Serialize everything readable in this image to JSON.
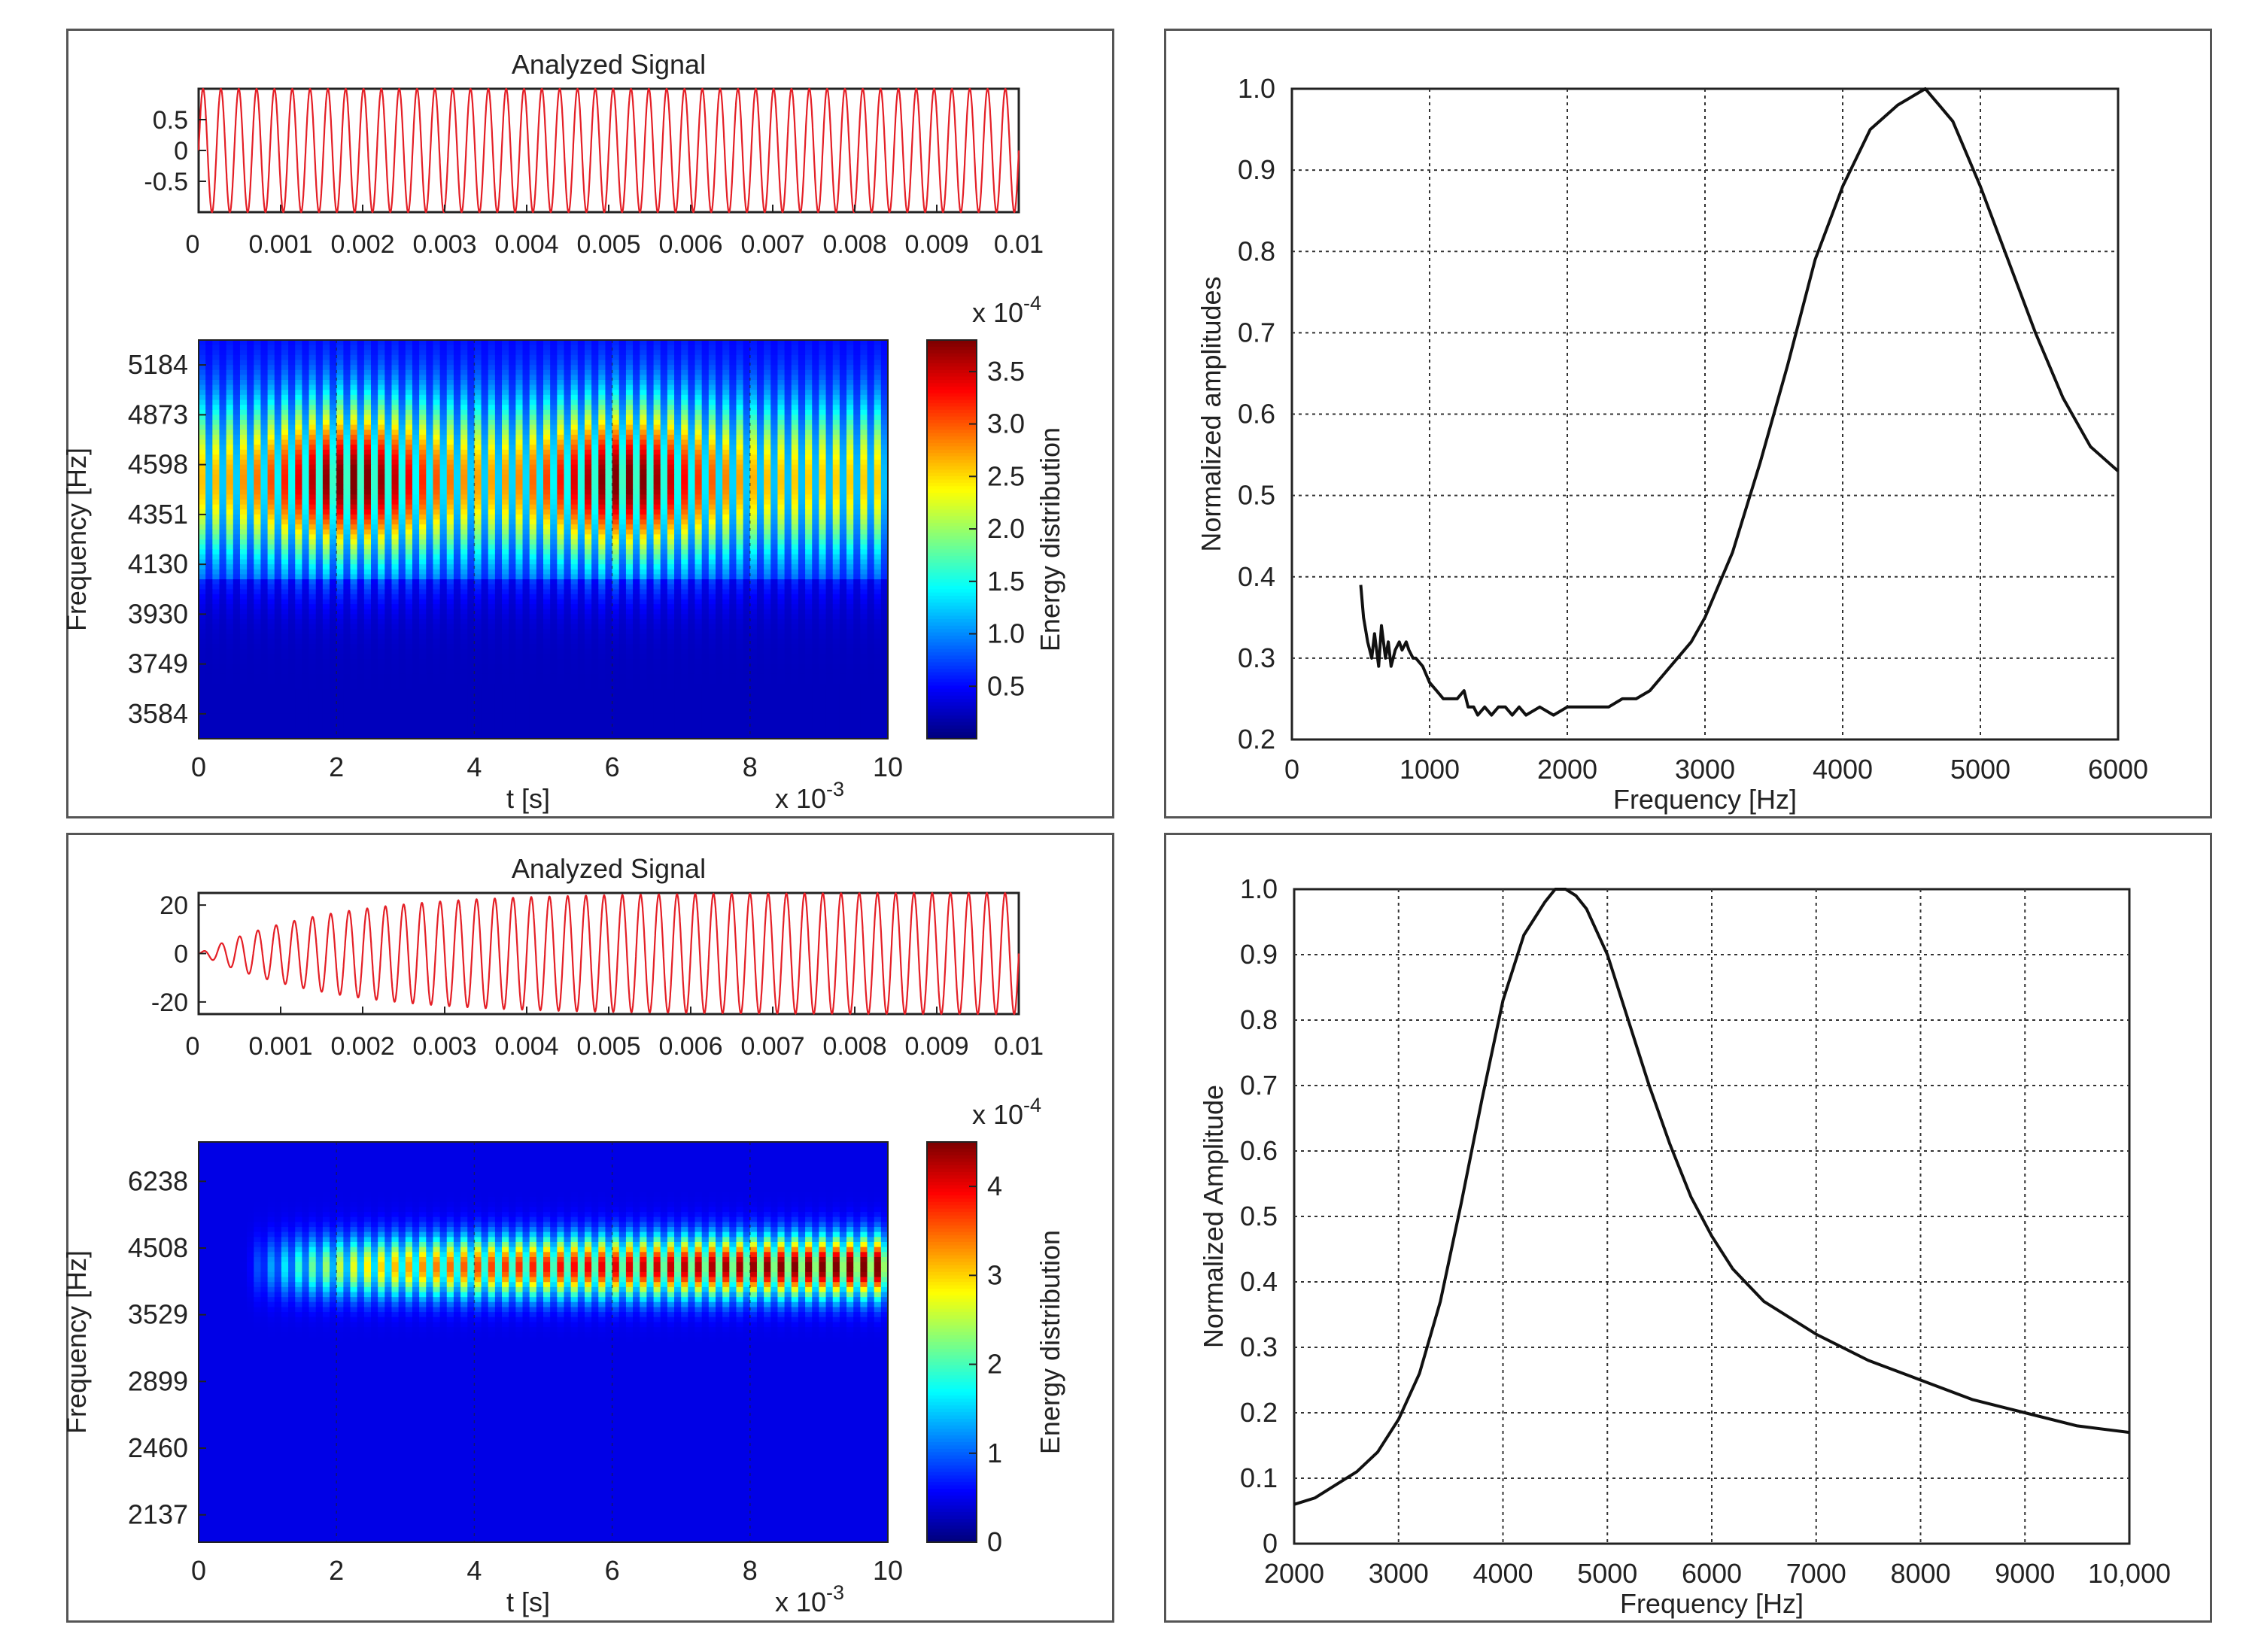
{
  "chart_data": [
    {
      "type": "line",
      "title": "Analyzed Signal",
      "x_ticks": [
        "0",
        "0.001",
        "0.002",
        "0.003",
        "0.004",
        "0.005",
        "0.006",
        "0.007",
        "0.008",
        "0.009",
        "0.01"
      ],
      "y_ticks": [
        "0.5",
        "0",
        "-0.5"
      ],
      "xlim": [
        0,
        0.01
      ],
      "ylim": [
        -1,
        1
      ],
      "signal": {
        "frequency_hz": 4600,
        "amplitude": 1.0,
        "envelope": "constant"
      },
      "color": "#e41f26"
    },
    {
      "type": "heatmap",
      "ylabel": "Frequency [Hz]",
      "xlabel": "t [s]",
      "x_multiplier": "x 10",
      "x_multiplier_exp": "-3",
      "x_ticks": [
        "0",
        "2",
        "4",
        "6",
        "8",
        "10"
      ],
      "y_ticks": [
        "5184",
        "4873",
        "4598",
        "4351",
        "4130",
        "3930",
        "3749",
        "3584"
      ],
      "colorbar": {
        "label": "Energy distribution",
        "multiplier": "x 10",
        "multiplier_exp": "-4",
        "ticks": [
          "3.5",
          "3.0",
          "2.5",
          "2.0",
          "1.5",
          "1.0",
          "0.5"
        ],
        "range": [
          0,
          3.8
        ]
      },
      "energy_peak_hz": 4598,
      "hot_spots_ms": [
        2.2,
        6.2
      ]
    },
    {
      "type": "line",
      "xlabel": "Frequency [Hz]",
      "ylabel": "Normalized amplitudes",
      "xlim": [
        0,
        6000
      ],
      "ylim": [
        0.2,
        1.0
      ],
      "x_ticks": [
        "0",
        "1000",
        "2000",
        "3000",
        "4000",
        "5000",
        "6000"
      ],
      "y_ticks": [
        "1.0",
        "0.9",
        "0.8",
        "0.7",
        "0.6",
        "0.5",
        "0.4",
        "0.3",
        "0.2"
      ],
      "grid": true,
      "x": [
        500,
        520,
        550,
        580,
        600,
        630,
        650,
        680,
        700,
        720,
        750,
        780,
        800,
        830,
        850,
        880,
        900,
        950,
        1000,
        1050,
        1100,
        1150,
        1200,
        1250,
        1280,
        1320,
        1350,
        1400,
        1450,
        1500,
        1550,
        1600,
        1650,
        1700,
        1800,
        1900,
        2000,
        2100,
        2200,
        2300,
        2400,
        2500,
        2600,
        2700,
        2800,
        2900,
        3000,
        3200,
        3400,
        3600,
        3800,
        4000,
        4200,
        4400,
        4500,
        4600,
        4650,
        4700,
        4800,
        4900,
        5000,
        5200,
        5400,
        5600,
        5800,
        6000
      ],
      "y": [
        0.39,
        0.35,
        0.32,
        0.3,
        0.33,
        0.29,
        0.34,
        0.3,
        0.32,
        0.29,
        0.31,
        0.32,
        0.31,
        0.32,
        0.31,
        0.3,
        0.3,
        0.29,
        0.27,
        0.26,
        0.25,
        0.25,
        0.25,
        0.26,
        0.24,
        0.24,
        0.23,
        0.24,
        0.23,
        0.24,
        0.24,
        0.23,
        0.24,
        0.23,
        0.24,
        0.23,
        0.24,
        0.24,
        0.24,
        0.24,
        0.25,
        0.25,
        0.26,
        0.28,
        0.3,
        0.32,
        0.35,
        0.43,
        0.54,
        0.66,
        0.79,
        0.88,
        0.95,
        0.98,
        0.99,
        1.0,
        0.99,
        0.98,
        0.96,
        0.92,
        0.88,
        0.79,
        0.7,
        0.62,
        0.56,
        0.53
      ],
      "color": "#111111"
    },
    {
      "type": "line",
      "title": "Analyzed Signal",
      "x_ticks": [
        "0",
        "0.001",
        "0.002",
        "0.003",
        "0.004",
        "0.005",
        "0.006",
        "0.007",
        "0.008",
        "0.009",
        "0.01"
      ],
      "y_ticks": [
        "20",
        "0",
        "-20"
      ],
      "xlim": [
        0,
        0.01
      ],
      "ylim": [
        -25,
        25
      ],
      "signal": {
        "frequency_hz": 4500,
        "amplitude": 25,
        "envelope": "rising",
        "rise_time_s": 0.0045
      },
      "color": "#e41f26"
    },
    {
      "type": "heatmap",
      "ylabel": "Frequency [Hz]",
      "xlabel": "t [s]",
      "x_multiplier": "x 10",
      "x_multiplier_exp": "-3",
      "x_ticks": [
        "0",
        "2",
        "4",
        "6",
        "8",
        "10"
      ],
      "y_ticks": [
        "6238",
        "4508",
        "3529",
        "2899",
        "2460",
        "2137"
      ],
      "colorbar": {
        "label": "Energy distribution",
        "multiplier": "x 10",
        "multiplier_exp": "-4",
        "ticks": [
          "4",
          "3",
          "2",
          "1",
          "0"
        ],
        "range": [
          0,
          4.5
        ]
      },
      "energy_peak_hz": 4508
    },
    {
      "type": "line",
      "xlabel": "Frequency [Hz]",
      "ylabel": "Normalized Amplitude",
      "xlim": [
        2000,
        10000
      ],
      "ylim": [
        0,
        1.0
      ],
      "x_ticks": [
        "2000",
        "3000",
        "4000",
        "5000",
        "6000",
        "7000",
        "8000",
        "9000",
        "10,000"
      ],
      "y_ticks": [
        "1.0",
        "0.9",
        "0.8",
        "0.7",
        "0.6",
        "0.5",
        "0.4",
        "0.3",
        "0.2",
        "0.1",
        "0"
      ],
      "grid": true,
      "x": [
        2000,
        2200,
        2400,
        2600,
        2800,
        3000,
        3200,
        3400,
        3600,
        3800,
        4000,
        4200,
        4400,
        4500,
        4600,
        4700,
        4800,
        5000,
        5200,
        5400,
        5600,
        5800,
        6000,
        6200,
        6500,
        7000,
        7500,
        8000,
        8500,
        9000,
        9500,
        10000
      ],
      "y": [
        0.06,
        0.07,
        0.09,
        0.11,
        0.14,
        0.19,
        0.26,
        0.37,
        0.52,
        0.68,
        0.83,
        0.93,
        0.98,
        1.0,
        1.0,
        0.99,
        0.97,
        0.9,
        0.8,
        0.7,
        0.61,
        0.53,
        0.47,
        0.42,
        0.37,
        0.32,
        0.28,
        0.25,
        0.22,
        0.2,
        0.18,
        0.17
      ],
      "color": "#111111"
    }
  ]
}
